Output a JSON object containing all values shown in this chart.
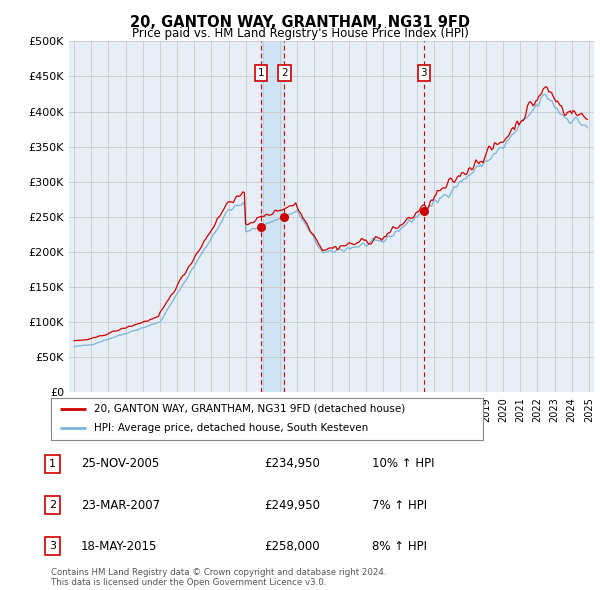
{
  "title": "20, GANTON WAY, GRANTHAM, NG31 9FD",
  "subtitle": "Price paid vs. HM Land Registry's House Price Index (HPI)",
  "ylabel_ticks": [
    "£0",
    "£50K",
    "£100K",
    "£150K",
    "£200K",
    "£250K",
    "£300K",
    "£350K",
    "£400K",
    "£450K",
    "£500K"
  ],
  "ytick_values": [
    0,
    50000,
    100000,
    150000,
    200000,
    250000,
    300000,
    350000,
    400000,
    450000,
    500000
  ],
  "ylim": [
    0,
    500000
  ],
  "xlim_start": 1994.7,
  "xlim_end": 2025.3,
  "hpi_color": "#7ab5d8",
  "price_color": "#cc0000",
  "sale_marker_color": "#cc0000",
  "vline_color": "#cc0000",
  "grid_color": "#c8c8c8",
  "bg_color": "#e8eef5",
  "shade_color": "#d0e4f5",
  "legend_label_price": "20, GANTON WAY, GRANTHAM, NG31 9FD (detached house)",
  "legend_label_hpi": "HPI: Average price, detached house, South Kesteven",
  "sales": [
    {
      "num": 1,
      "date": "25-NOV-2005",
      "price": 234950,
      "pct": "10%",
      "x": 2005.9
    },
    {
      "num": 2,
      "date": "23-MAR-2007",
      "price": 249950,
      "pct": "7%",
      "x": 2007.25
    },
    {
      "num": 3,
      "date": "18-MAY-2015",
      "price": 258000,
      "pct": "8%",
      "x": 2015.38
    }
  ],
  "copyright": "Contains HM Land Registry data © Crown copyright and database right 2024.\nThis data is licensed under the Open Government Licence v3.0."
}
